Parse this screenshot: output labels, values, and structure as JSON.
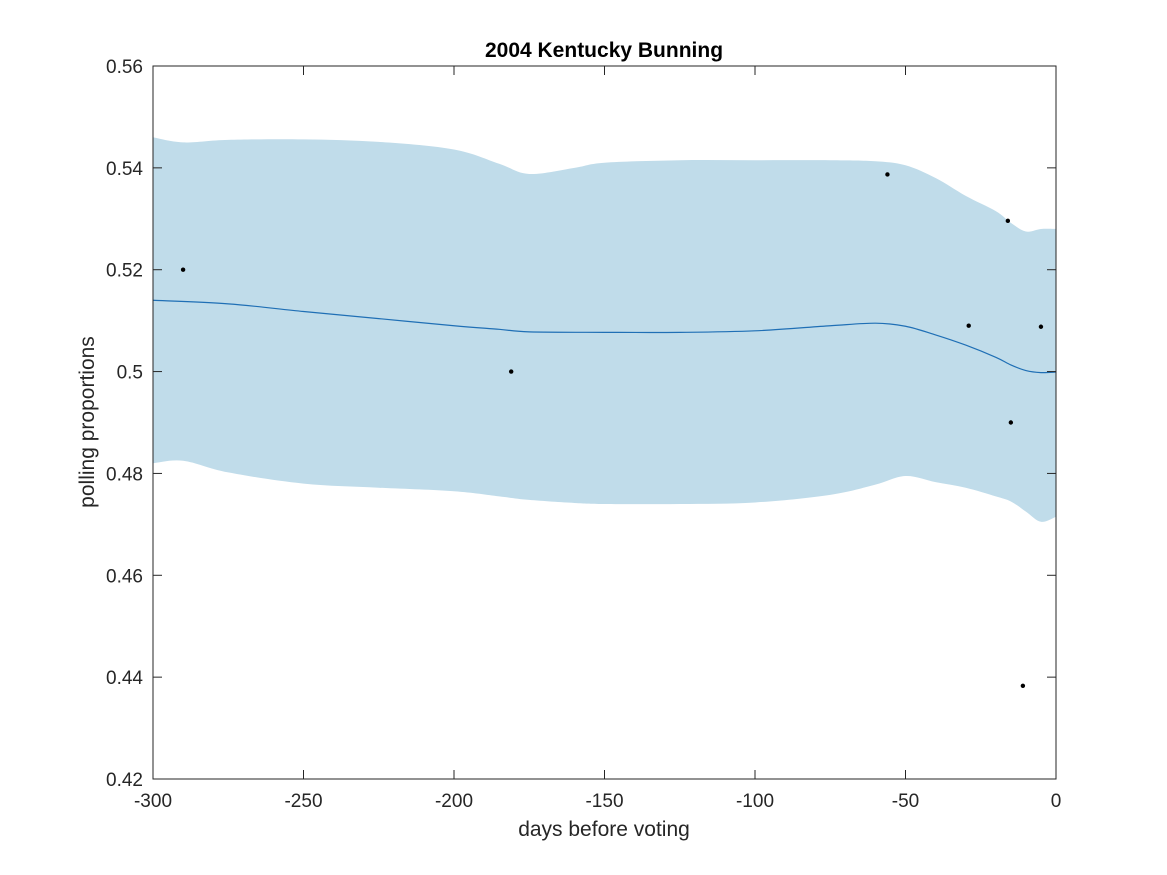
{
  "chart_data": {
    "type": "line",
    "title": "2004 Kentucky Bunning",
    "xlabel": "days before voting",
    "ylabel": "polling proportions",
    "xlim": [
      -300,
      0
    ],
    "ylim": [
      0.42,
      0.56
    ],
    "xticks": [
      -300,
      -250,
      -200,
      -150,
      -100,
      -50,
      0
    ],
    "yticks": [
      0.42,
      0.44,
      0.46,
      0.48,
      0.5,
      0.52,
      0.54,
      0.56
    ],
    "xtick_labels": [
      "-300",
      "-250",
      "-200",
      "-150",
      "-100",
      "-50",
      "0"
    ],
    "ytick_labels": [
      "0.42",
      "0.44",
      "0.46",
      "0.48",
      "0.5",
      "0.52",
      "0.54",
      "0.56"
    ],
    "grid": false,
    "colors": {
      "band": "#c0dcea",
      "mean_line": "#1f6fb5",
      "points": "#000000",
      "axes": "#262626"
    },
    "series": [
      {
        "type": "area-band",
        "x": [
          -300,
          -290,
          -275,
          -250,
          -225,
          -200,
          -185,
          -175,
          -160,
          -150,
          -125,
          -100,
          -75,
          -60,
          -50,
          -40,
          -30,
          -20,
          -15,
          -10,
          -5,
          0
        ],
        "lower": [
          0.482,
          0.4825,
          0.4802,
          0.478,
          0.4772,
          0.4765,
          0.4755,
          0.4748,
          0.4742,
          0.474,
          0.474,
          0.4743,
          0.4758,
          0.4778,
          0.4795,
          0.4783,
          0.4772,
          0.4755,
          0.4745,
          0.4725,
          0.4705,
          0.4715
        ],
        "upper": [
          0.546,
          0.545,
          0.5455,
          0.5456,
          0.5451,
          0.5436,
          0.5408,
          0.5388,
          0.54,
          0.541,
          0.5415,
          0.5415,
          0.5415,
          0.5413,
          0.5405,
          0.538,
          0.5345,
          0.5315,
          0.5292,
          0.5275,
          0.528,
          0.528
        ]
      },
      {
        "type": "line",
        "x": [
          -300,
          -275,
          -250,
          -225,
          -200,
          -185,
          -175,
          -150,
          -125,
          -100,
          -75,
          -60,
          -50,
          -40,
          -30,
          -20,
          -15,
          -10,
          -5,
          0
        ],
        "y": [
          0.514,
          0.5133,
          0.5118,
          0.5104,
          0.509,
          0.5083,
          0.5078,
          0.5077,
          0.5077,
          0.508,
          0.509,
          0.5095,
          0.5089,
          0.5072,
          0.5052,
          0.5028,
          0.5013,
          0.5002,
          0.4998,
          0.4999
        ]
      },
      {
        "type": "scatter",
        "x": [
          -290,
          -181,
          -56,
          -29,
          -16,
          -15,
          -11,
          -5
        ],
        "y": [
          0.52,
          0.5,
          0.5387,
          0.509,
          0.5296,
          0.49,
          0.4383,
          0.5088
        ]
      }
    ]
  }
}
